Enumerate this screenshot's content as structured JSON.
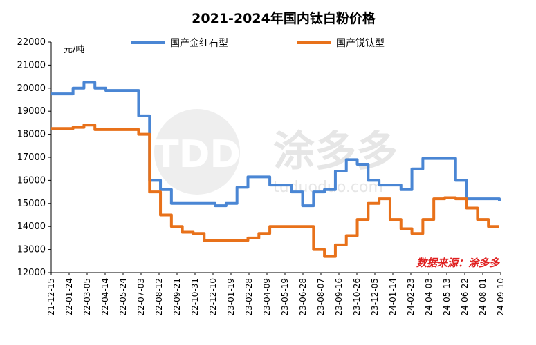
{
  "chart_data": {
    "type": "line",
    "title": "2021-2024年国内钛白粉价格",
    "ylabel": "元/吨",
    "ylim": [
      12000,
      22000
    ],
    "yticks": [
      12000,
      13000,
      14000,
      15000,
      16000,
      17000,
      18000,
      19000,
      20000,
      21000,
      22000
    ],
    "x_ticks": [
      "21-12-15",
      "22-01-24",
      "22-03-05",
      "22-04-14",
      "22-05-24",
      "22-07-03",
      "22-08-12",
      "22-09-21",
      "22-10-31",
      "22-12-10",
      "23-01-19",
      "23-02-28",
      "23-04-09",
      "23-05-19",
      "23-06-28",
      "23-08-07",
      "23-09-16",
      "23-10-26",
      "23-12-05",
      "24-01-14",
      "24-02-23",
      "24-04-03",
      "24-05-13",
      "24-06-22",
      "24-08-01",
      "24-09-10"
    ],
    "legend_position": "top",
    "grid": false,
    "series": [
      {
        "name": "国产金红石型",
        "color": "#4a86d4",
        "values": [
          19750,
          19750,
          20000,
          20250,
          20000,
          19900,
          19900,
          19900,
          18800,
          16000,
          15600,
          15000,
          15000,
          15000,
          15000,
          14900,
          15000,
          15700,
          16150,
          16150,
          15800,
          15800,
          15500,
          14900,
          15500,
          15600,
          16400,
          16900,
          16700,
          16000,
          15800,
          15800,
          15600,
          16500,
          16950,
          16950,
          16950,
          16000,
          15200,
          15200,
          15200,
          15100
        ]
      },
      {
        "name": "国产锐钛型",
        "color": "#e8711a",
        "values": [
          18250,
          18250,
          18300,
          18400,
          18200,
          18200,
          18200,
          18200,
          18000,
          15500,
          14500,
          14000,
          13750,
          13700,
          13400,
          13400,
          13400,
          13400,
          13500,
          13700,
          14000,
          14000,
          14000,
          14000,
          13000,
          12700,
          13200,
          13600,
          14300,
          15000,
          15200,
          14300,
          13900,
          13700,
          14300,
          15200,
          15250,
          15200,
          14800,
          14300,
          14000,
          14000
        ]
      }
    ],
    "source_text": "数据来源：涂多多",
    "watermark_text": "涂多多",
    "watermark_logo": "TDD",
    "watermark_url": "tuduoduo.com"
  }
}
